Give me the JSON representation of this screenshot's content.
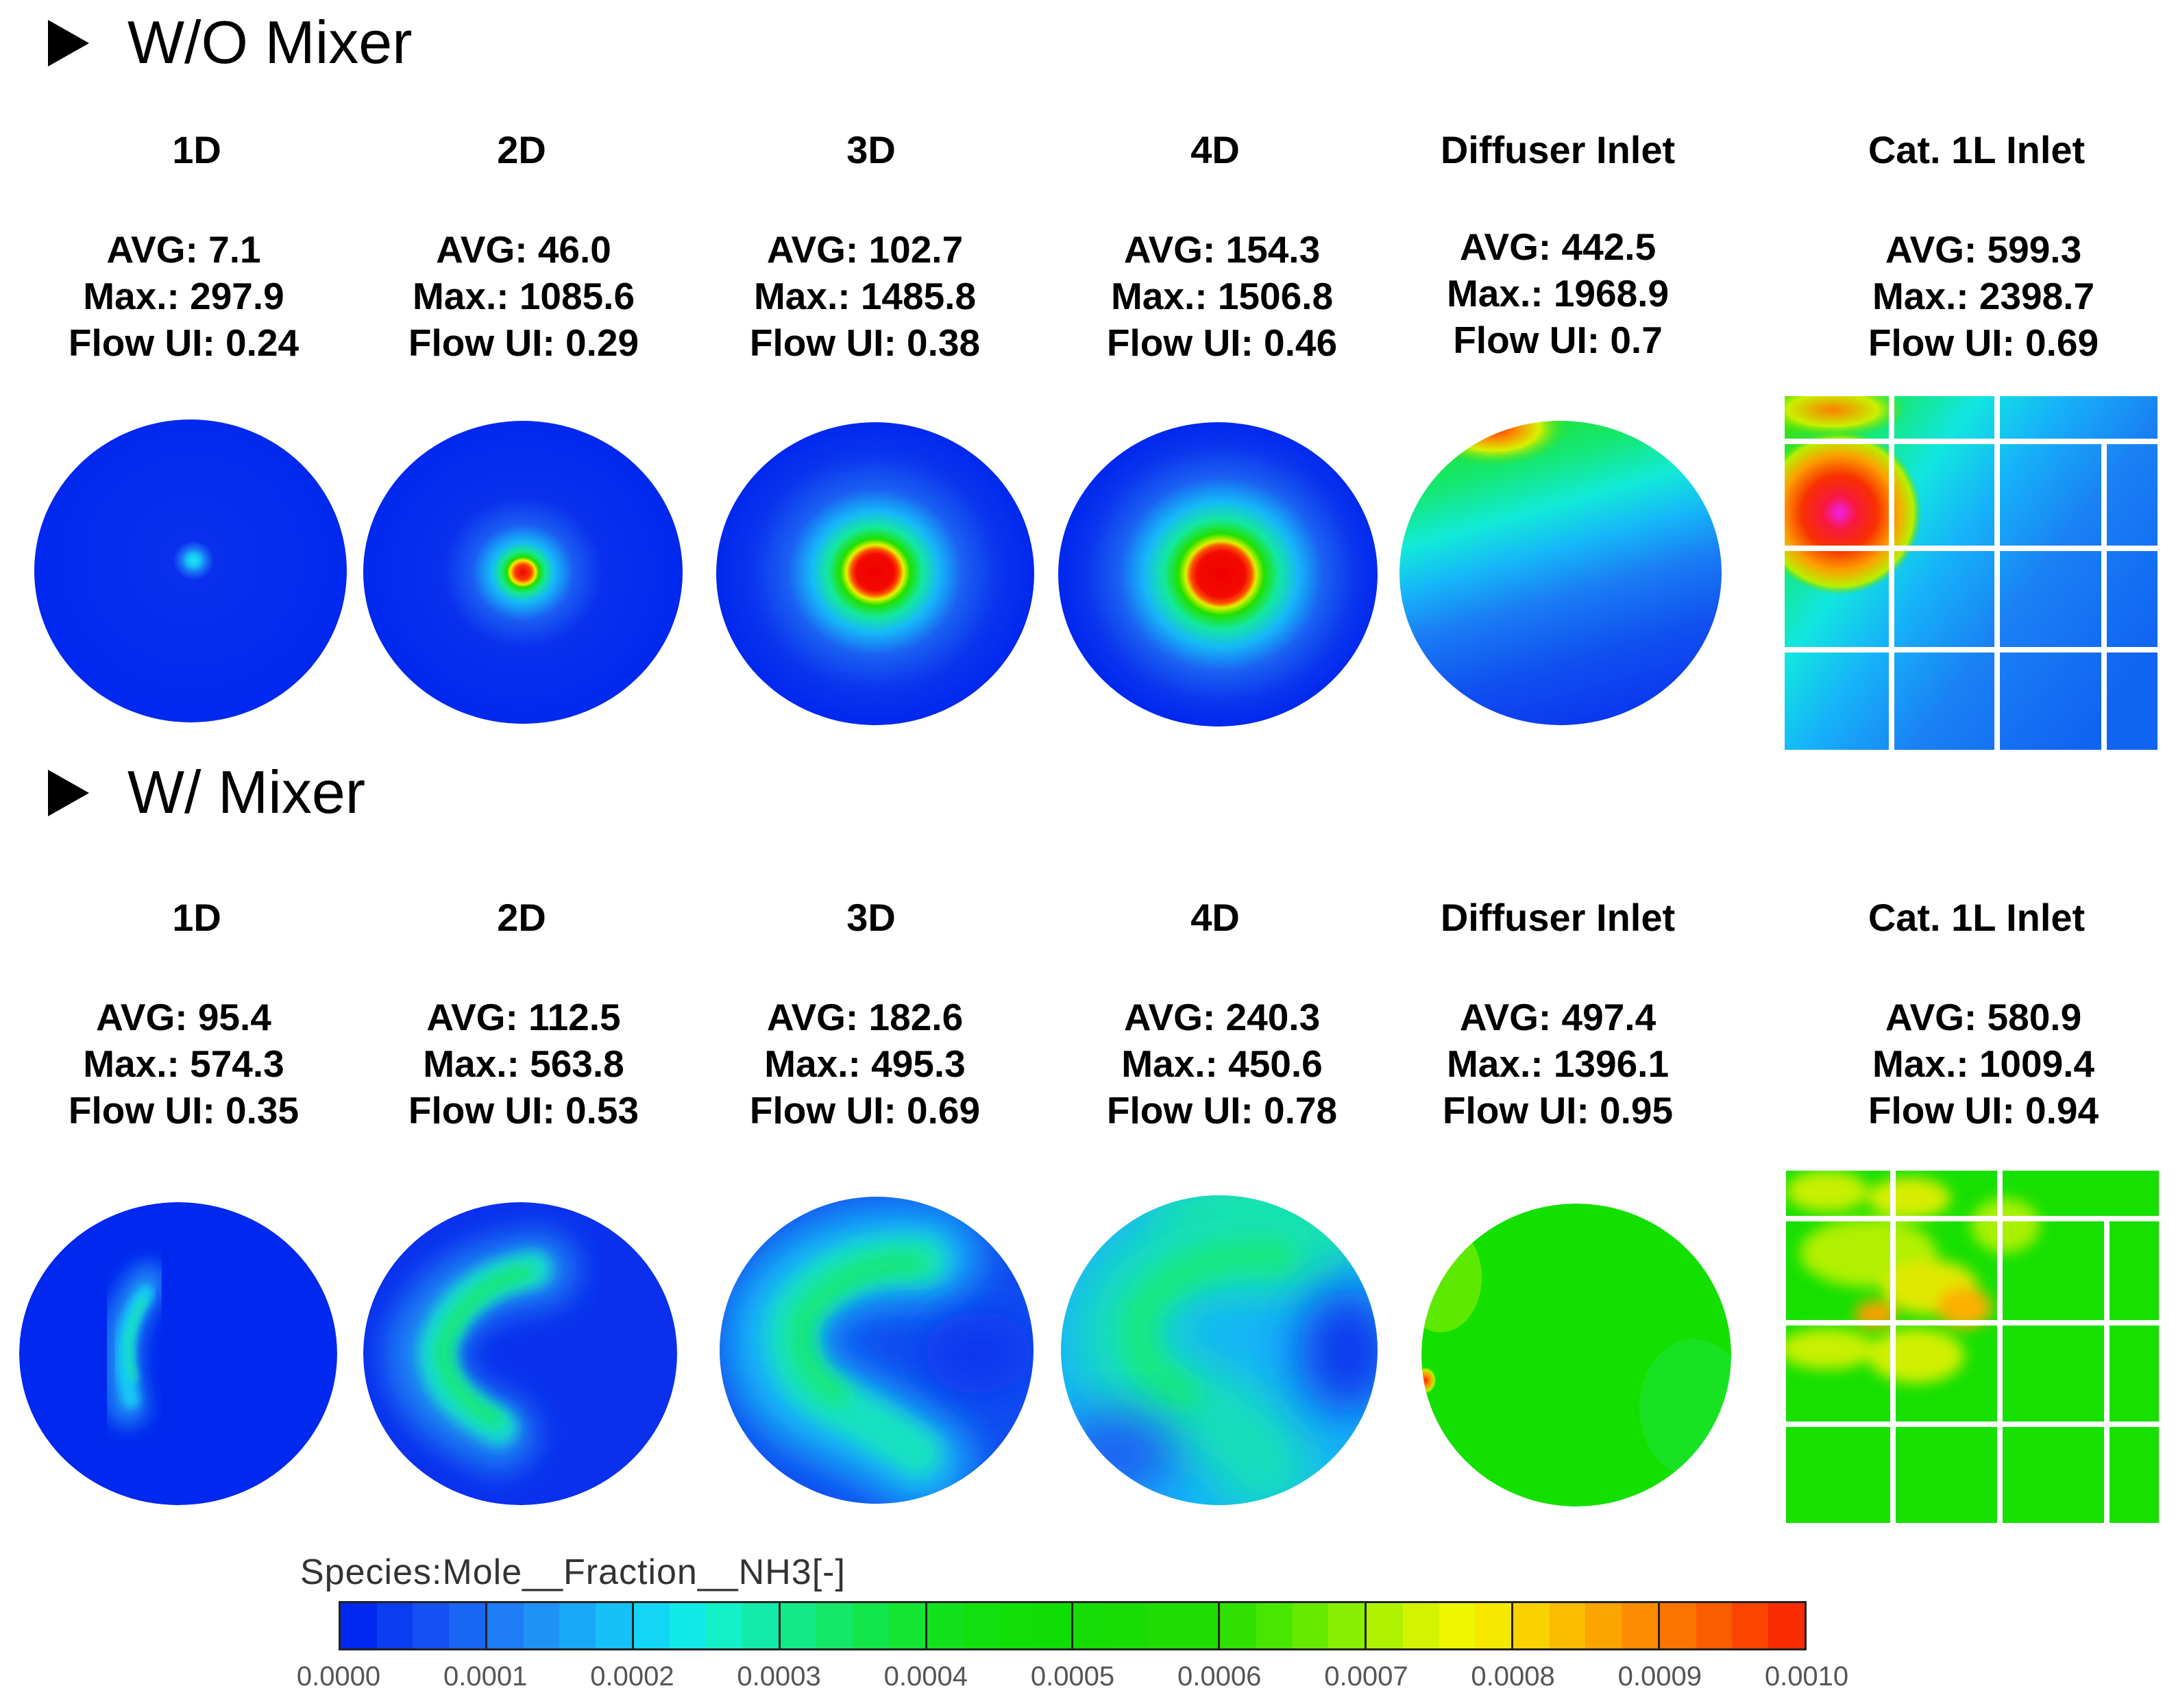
{
  "sections": [
    {
      "title": "W/O Mixer",
      "columns": [
        {
          "head": "1D",
          "avg": "AVG: 7.1",
          "max": "Max.: 297.9",
          "ui": "Flow UI: 0.24"
        },
        {
          "head": "2D",
          "avg": "AVG: 46.0",
          "max": "Max.: 1085.6",
          "ui": "Flow UI: 0.29"
        },
        {
          "head": "3D",
          "avg": "AVG: 102.7",
          "max": "Max.: 1485.8",
          "ui": "Flow UI: 0.38"
        },
        {
          "head": "4D",
          "avg": "AVG: 154.3",
          "max": "Max.: 1506.8",
          "ui": "Flow UI: 0.46"
        },
        {
          "head": "Diffuser Inlet",
          "avg": "AVG: 442.5",
          "max": "Max.: 1968.9",
          "ui": "Flow UI: 0.7"
        },
        {
          "head": "Cat. 1L Inlet",
          "avg": "AVG: 599.3",
          "max": "Max.: 2398.7",
          "ui": "Flow UI: 0.69"
        }
      ]
    },
    {
      "title": "W/ Mixer",
      "columns": [
        {
          "head": "1D",
          "avg": "AVG: 95.4",
          "max": "Max.: 574.3",
          "ui": "Flow UI: 0.35"
        },
        {
          "head": "2D",
          "avg": "AVG: 112.5",
          "max": "Max.: 563.8",
          "ui": "Flow UI: 0.53"
        },
        {
          "head": "3D",
          "avg": "AVG: 182.6",
          "max": "Max.: 495.3",
          "ui": "Flow UI: 0.69"
        },
        {
          "head": "4D",
          "avg": "AVG: 240.3",
          "max": "Max.: 450.6",
          "ui": "Flow UI: 0.78"
        },
        {
          "head": "Diffuser Inlet",
          "avg": "AVG: 497.4",
          "max": "Max.: 1396.1",
          "ui": "Flow UI: 0.95"
        },
        {
          "head": "Cat. 1L Inlet",
          "avg": "AVG: 580.9",
          "max": "Max.: 1009.4",
          "ui": "Flow UI: 0.94"
        }
      ]
    }
  ],
  "legend": {
    "title": "Species:Mole__Fraction__NH3[-]",
    "ticks": [
      "0.0000",
      "0.0001",
      "0.0002",
      "0.0003",
      "0.0004",
      "0.0005",
      "0.0006",
      "0.0007",
      "0.0008",
      "0.0009",
      "0.0010"
    ],
    "colors": [
      "#0028ee",
      "#0a3cf0",
      "#1450f2",
      "#1a66f4",
      "#1e7cf5",
      "#1e92f7",
      "#1aa8f8",
      "#16c0f8",
      "#12d6f4",
      "#12eae8",
      "#14f0c8",
      "#12eca8",
      "#12ea88",
      "#14e868",
      "#12e64a",
      "#14e432",
      "#12e21e",
      "#12e00e",
      "#10de06",
      "#10dc06",
      "#14dc04",
      "#18dc04",
      "#20dc04",
      "#20dc02",
      "#30e000",
      "#48e600",
      "#66ea00",
      "#8aee00",
      "#aef200",
      "#d2f400",
      "#eef600",
      "#f8e800",
      "#fad200",
      "#fbbc00",
      "#fca400",
      "#fc8c00",
      "#fc7400",
      "#fc5c00",
      "#fa4400",
      "#f82c00"
    ]
  }
}
